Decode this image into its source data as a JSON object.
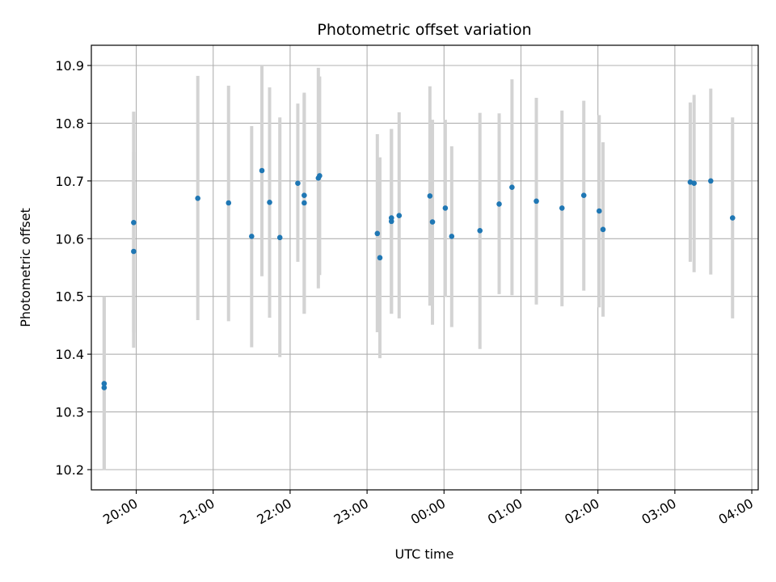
{
  "chart_data": {
    "type": "scatter",
    "title": "Photometric offset variation",
    "xlabel": "UTC time",
    "ylabel": "Photometric offset",
    "x_axis": {
      "kind": "time",
      "range": [
        "19:25",
        "04:05"
      ],
      "ticks": [
        "20:00",
        "21:00",
        "22:00",
        "23:00",
        "00:00",
        "01:00",
        "02:00",
        "03:00",
        "04:00"
      ],
      "tick_label_rotation_deg": 30
    },
    "y_axis": {
      "range": [
        10.165,
        10.935
      ],
      "ticks": [
        10.2,
        10.3,
        10.4,
        10.5,
        10.6,
        10.7,
        10.8,
        10.9
      ]
    },
    "grid": true,
    "point_color": "#1f77b4",
    "errorbar_color": "#d3d3d3",
    "points": [
      {
        "x": "19:35",
        "y": 10.349,
        "ylo": 10.199,
        "yhi": 10.499
      },
      {
        "x": "19:35",
        "y": 10.342,
        "ylo": 10.2,
        "yhi": 10.5
      },
      {
        "x": "19:58",
        "y": 10.578,
        "ylo": 10.437,
        "yhi": 10.75
      },
      {
        "x": "19:58",
        "y": 10.628,
        "ylo": 10.411,
        "yhi": 10.82
      },
      {
        "x": "20:48",
        "y": 10.67,
        "ylo": 10.459,
        "yhi": 10.882
      },
      {
        "x": "21:12",
        "y": 10.662,
        "ylo": 10.457,
        "yhi": 10.865
      },
      {
        "x": "21:30",
        "y": 10.604,
        "ylo": 10.412,
        "yhi": 10.795
      },
      {
        "x": "21:38",
        "y": 10.718,
        "ylo": 10.535,
        "yhi": 10.9
      },
      {
        "x": "21:44",
        "y": 10.663,
        "ylo": 10.463,
        "yhi": 10.862
      },
      {
        "x": "21:52",
        "y": 10.602,
        "ylo": 10.395,
        "yhi": 10.81
      },
      {
        "x": "22:06",
        "y": 10.696,
        "ylo": 10.56,
        "yhi": 10.834
      },
      {
        "x": "22:11",
        "y": 10.675,
        "ylo": 10.47,
        "yhi": 10.853
      },
      {
        "x": "22:11",
        "y": 10.662,
        "ylo": 10.47,
        "yhi": 10.85
      },
      {
        "x": "22:22",
        "y": 10.705,
        "ylo": 10.514,
        "yhi": 10.896
      },
      {
        "x": "22:23",
        "y": 10.709,
        "ylo": 10.537,
        "yhi": 10.881
      },
      {
        "x": "23:08",
        "y": 10.609,
        "ylo": 10.438,
        "yhi": 10.781
      },
      {
        "x": "23:10",
        "y": 10.567,
        "ylo": 10.393,
        "yhi": 10.741
      },
      {
        "x": "23:19",
        "y": 10.636,
        "ylo": 10.47,
        "yhi": 10.79
      },
      {
        "x": "23:19",
        "y": 10.63,
        "ylo": 10.47,
        "yhi": 10.79
      },
      {
        "x": "23:25",
        "y": 10.64,
        "ylo": 10.462,
        "yhi": 10.819
      },
      {
        "x": "23:49",
        "y": 10.674,
        "ylo": 10.484,
        "yhi": 10.864
      },
      {
        "x": "23:51",
        "y": 10.629,
        "ylo": 10.451,
        "yhi": 10.806
      },
      {
        "x": "00:01",
        "y": 10.653,
        "ylo": 10.499,
        "yhi": 10.806
      },
      {
        "x": "00:06",
        "y": 10.604,
        "ylo": 10.447,
        "yhi": 10.76
      },
      {
        "x": "00:28",
        "y": 10.614,
        "ylo": 10.409,
        "yhi": 10.818
      },
      {
        "x": "00:43",
        "y": 10.66,
        "ylo": 10.504,
        "yhi": 10.817
      },
      {
        "x": "00:53",
        "y": 10.689,
        "ylo": 10.502,
        "yhi": 10.876
      },
      {
        "x": "01:12",
        "y": 10.665,
        "ylo": 10.486,
        "yhi": 10.844
      },
      {
        "x": "01:32",
        "y": 10.653,
        "ylo": 10.483,
        "yhi": 10.822
      },
      {
        "x": "01:49",
        "y": 10.675,
        "ylo": 10.51,
        "yhi": 10.839
      },
      {
        "x": "02:01",
        "y": 10.648,
        "ylo": 10.481,
        "yhi": 10.814
      },
      {
        "x": "02:04",
        "y": 10.616,
        "ylo": 10.465,
        "yhi": 10.767
      },
      {
        "x": "03:12",
        "y": 10.698,
        "ylo": 10.56,
        "yhi": 10.836
      },
      {
        "x": "03:15",
        "y": 10.696,
        "ylo": 10.542,
        "yhi": 10.849
      },
      {
        "x": "03:28",
        "y": 10.7,
        "ylo": 10.538,
        "yhi": 10.86
      },
      {
        "x": "03:45",
        "y": 10.636,
        "ylo": 10.462,
        "yhi": 10.81
      }
    ]
  }
}
